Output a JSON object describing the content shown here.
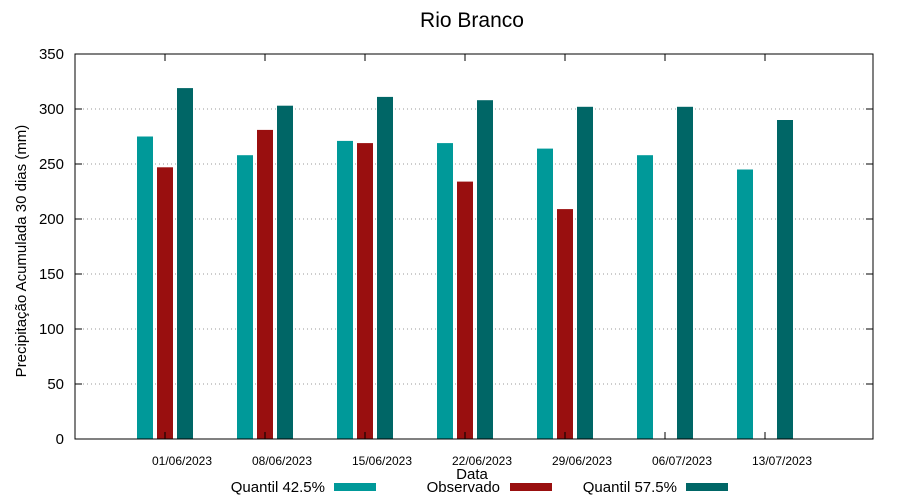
{
  "chart_data": {
    "type": "bar",
    "title": "Rio Branco",
    "xlabel": "Data",
    "ylabel": "Precipitação Acumulada 30 dias (mm)",
    "ylim": [
      0,
      350
    ],
    "yticks": [
      0,
      50,
      100,
      150,
      200,
      250,
      300,
      350
    ],
    "grid": "horizontal dotted",
    "legend_position": "bottom",
    "categories": [
      "01/06/2023",
      "08/06/2023",
      "15/06/2023",
      "22/06/2023",
      "29/06/2023",
      "06/07/2023",
      "13/07/2023"
    ],
    "series": [
      {
        "name": "Quantil 42.5%",
        "color": "#009999",
        "values": [
          275,
          258,
          271,
          269,
          264,
          258,
          245
        ]
      },
      {
        "name": "Observado",
        "color": "#990f0f",
        "values": [
          247,
          281,
          269,
          234,
          209,
          null,
          null
        ]
      },
      {
        "name": "Quantil 57.5%",
        "color": "#006666",
        "values": [
          319,
          303,
          311,
          308,
          302,
          302,
          290
        ]
      }
    ]
  }
}
